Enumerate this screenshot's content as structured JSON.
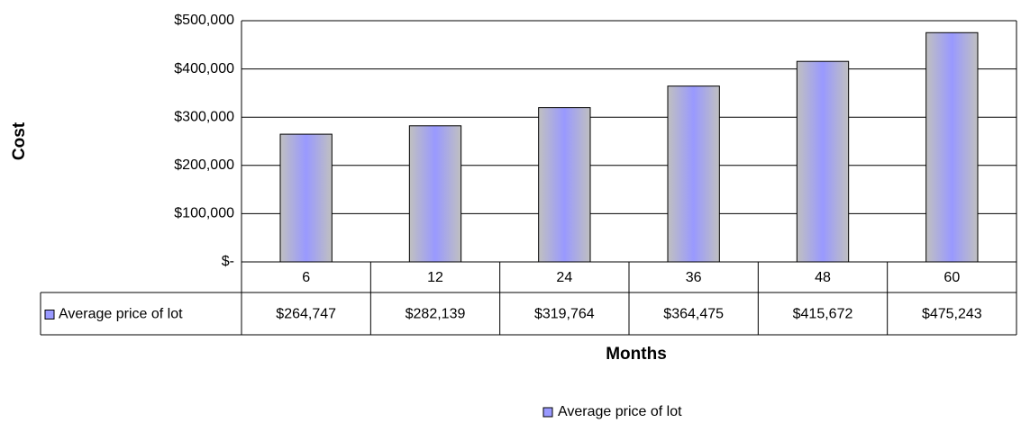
{
  "chart_data": {
    "type": "bar",
    "x_label": "Months",
    "y_label": "Cost",
    "categories": [
      "6",
      "12",
      "24",
      "36",
      "48",
      "60"
    ],
    "series": [
      {
        "name": "Average price of lot",
        "color": "#9999ff",
        "values": [
          264747,
          282139,
          319764,
          364475,
          415672,
          475243
        ],
        "value_labels": [
          "$264,747",
          "$282,139",
          "$319,764",
          "$364,475",
          "$415,672",
          "$475,243"
        ]
      }
    ],
    "ylim": [
      0,
      500000
    ],
    "yticks": [
      {
        "value": 0,
        "label": "$-"
      },
      {
        "value": 100000,
        "label": "$100,000"
      },
      {
        "value": 200000,
        "label": "$200,000"
      },
      {
        "value": 300000,
        "label": "$300,000"
      },
      {
        "value": 400000,
        "label": "$400,000"
      },
      {
        "value": 500000,
        "label": "$500,000"
      }
    ],
    "grid": true,
    "legend": "bottom"
  }
}
